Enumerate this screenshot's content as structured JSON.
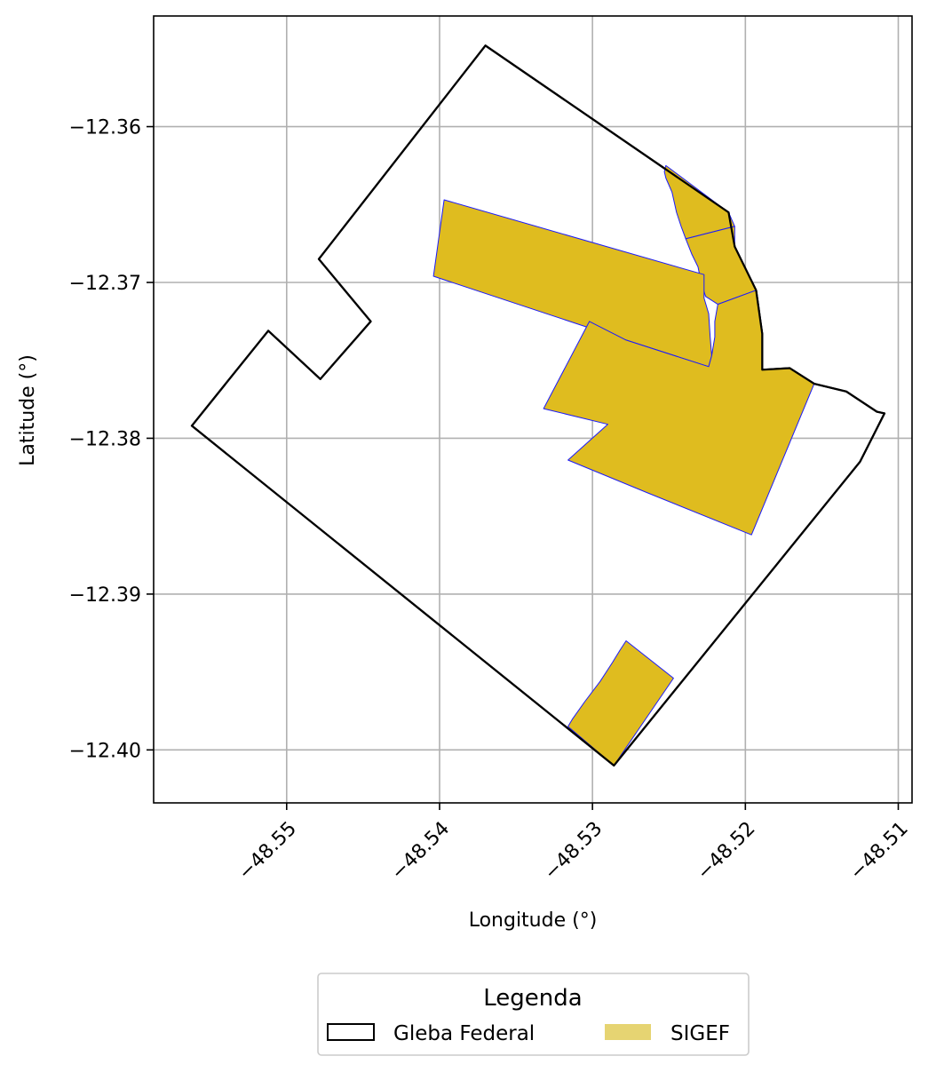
{
  "chart_data": {
    "type": "map",
    "xlabel": "Longitude (°)",
    "ylabel": "Latitude (°)",
    "xlim": [
      -48.5587,
      -48.5091
    ],
    "ylim": [
      -12.4034,
      -12.3529
    ],
    "xticks": [
      -48.55,
      -48.54,
      -48.53,
      -48.52,
      -48.51
    ],
    "xtick_labels": [
      "−48.55",
      "−48.54",
      "−48.53",
      "−48.52",
      "−48.51"
    ],
    "yticks": [
      -12.36,
      -12.37,
      -12.38,
      -12.39,
      -12.4
    ],
    "ytick_labels": [
      "−12.36",
      "−12.37",
      "−12.38",
      "−12.39",
      "−12.40"
    ],
    "grid": true,
    "legend": {
      "title": "Legenda",
      "position": "bottom-center",
      "entries": [
        {
          "label": "Gleba Federal",
          "style": "outline",
          "color": "#000000"
        },
        {
          "label": "SIGEF",
          "style": "fill",
          "color": "#e6d472"
        }
      ]
    },
    "layers": {
      "gleba_federal": {
        "name": "Gleba Federal",
        "stroke": "#000000",
        "fill": "none",
        "polygon": [
          [
            -48.537,
            -12.3548
          ],
          [
            -48.5211,
            -12.3655
          ],
          [
            -48.5207,
            -12.3677
          ],
          [
            -48.5193,
            -12.3705
          ],
          [
            -48.5189,
            -12.3733
          ],
          [
            -48.5189,
            -12.3756
          ],
          [
            -48.5171,
            -12.3755
          ],
          [
            -48.5155,
            -12.3765
          ],
          [
            -48.5134,
            -12.377
          ],
          [
            -48.5114,
            -12.3783
          ],
          [
            -48.5109,
            -12.3784
          ],
          [
            -48.5125,
            -12.3815
          ],
          [
            -48.5286,
            -12.401
          ],
          [
            -48.5562,
            -12.3792
          ],
          [
            -48.5512,
            -12.3731
          ],
          [
            -48.5478,
            -12.3762
          ],
          [
            -48.5445,
            -12.3725
          ],
          [
            -48.5479,
            -12.3685
          ]
        ]
      },
      "sigef": {
        "name": "SIGEF",
        "fill": "#dfbc1f",
        "stroke": "#1a1aff",
        "parcels": [
          [
            [
              -48.5252,
              -12.3625
            ],
            [
              -48.5211,
              -12.3655
            ],
            [
              -48.5207,
              -12.3664
            ],
            [
              -48.5239,
              -12.3672
            ],
            [
              -48.5242,
              -12.3664
            ],
            [
              -48.5245,
              -12.3655
            ],
            [
              -48.5248,
              -12.3642
            ],
            [
              -48.5252,
              -12.3633
            ],
            [
              -48.5253,
              -12.3629
            ]
          ],
          [
            [
              -48.5239,
              -12.3672
            ],
            [
              -48.5207,
              -12.3664
            ],
            [
              -48.5207,
              -12.3677
            ],
            [
              -48.5193,
              -12.3705
            ],
            [
              -48.5218,
              -12.3714
            ],
            [
              -48.5226,
              -12.3709
            ],
            [
              -48.5229,
              -12.37
            ],
            [
              -48.5231,
              -12.369
            ],
            [
              -48.5235,
              -12.3682
            ]
          ],
          [
            [
              -48.5397,
              -12.3647
            ],
            [
              -48.5227,
              -12.3695
            ],
            [
              -48.5227,
              -12.371
            ],
            [
              -48.5224,
              -12.372
            ],
            [
              -48.5223,
              -12.3735
            ],
            [
              -48.5222,
              -12.3747
            ],
            [
              -48.5224,
              -12.3754
            ],
            [
              -48.5278,
              -12.3737
            ],
            [
              -48.5404,
              -12.3696
            ]
          ],
          [
            [
              -48.5218,
              -12.3714
            ],
            [
              -48.5193,
              -12.3705
            ],
            [
              -48.5189,
              -12.3733
            ],
            [
              -48.5189,
              -12.3756
            ],
            [
              -48.5171,
              -12.3755
            ],
            [
              -48.5155,
              -12.3765
            ],
            [
              -48.5196,
              -12.3862
            ],
            [
              -48.5264,
              -12.3835
            ],
            [
              -48.5316,
              -12.3814
            ],
            [
              -48.529,
              -12.3791
            ],
            [
              -48.5332,
              -12.3781
            ],
            [
              -48.5302,
              -12.3725
            ],
            [
              -48.5278,
              -12.3737
            ],
            [
              -48.5224,
              -12.3754
            ],
            [
              -48.5222,
              -12.3747
            ],
            [
              -48.522,
              -12.3735
            ],
            [
              -48.522,
              -12.3725
            ]
          ],
          [
            [
              -48.5278,
              -12.393
            ],
            [
              -48.5247,
              -12.3954
            ],
            [
              -48.5286,
              -12.401
            ],
            [
              -48.5316,
              -12.3985
            ],
            [
              -48.5313,
              -12.398
            ],
            [
              -48.5305,
              -12.3969
            ],
            [
              -48.5295,
              -12.3956
            ],
            [
              -48.5287,
              -12.3944
            ],
            [
              -48.5282,
              -12.3936
            ]
          ]
        ]
      }
    }
  }
}
